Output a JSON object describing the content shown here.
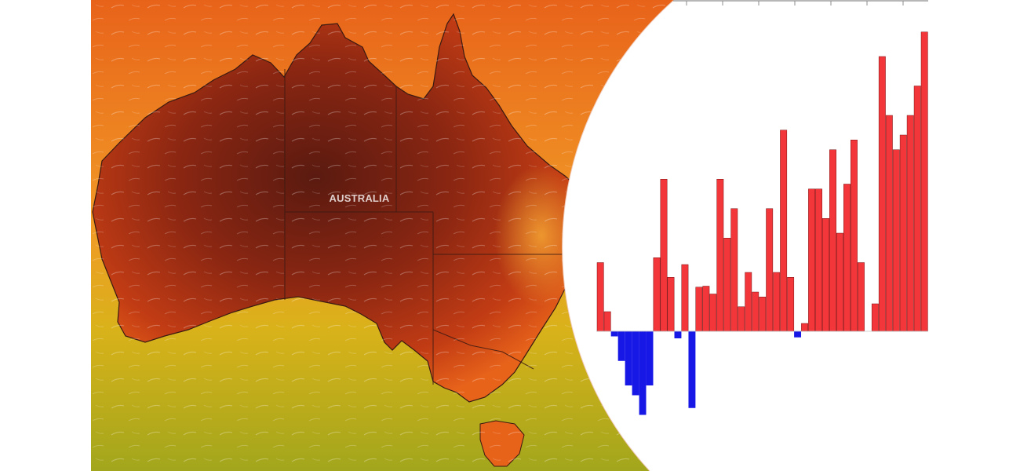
{
  "map": {
    "region_label": "AUSTRALIA",
    "palette": {
      "hottest": "#5a1a10",
      "very_hot": "#8a2612",
      "hot": "#c23c14",
      "warm": "#e8631a",
      "mild": "#f19a26",
      "cool_ocean": "#d9b21a",
      "coolest_ocean": "#a2a61c",
      "coastline": "#3a1a12"
    }
  },
  "chart": {
    "colors": {
      "positive": "#f2363a",
      "negative": "#1717e6",
      "bar_outline": "#7a1414",
      "axis": "#8c8c8c"
    }
  },
  "chart_data": {
    "type": "bar",
    "title": "",
    "xlabel": "",
    "ylabel": "",
    "grid": false,
    "legend": "none",
    "note": "",
    "values": [
      0.7,
      0.2,
      -0.05,
      -0.3,
      -0.55,
      -0.65,
      -0.85,
      -0.55,
      0.75,
      1.55,
      0.55,
      -0.07,
      0.68,
      -0.78,
      0.45,
      0.46,
      0.38,
      1.55,
      0.95,
      1.25,
      0.25,
      0.6,
      0.4,
      0.35,
      1.25,
      0.6,
      2.05,
      0.55,
      -0.06,
      0.08,
      1.45,
      1.45,
      1.15,
      1.85,
      1.0,
      1.5,
      1.95,
      0.7,
      0.0,
      0.28,
      2.8,
      2.2,
      1.85,
      2.0,
      2.2,
      2.5,
      3.05
    ]
  }
}
